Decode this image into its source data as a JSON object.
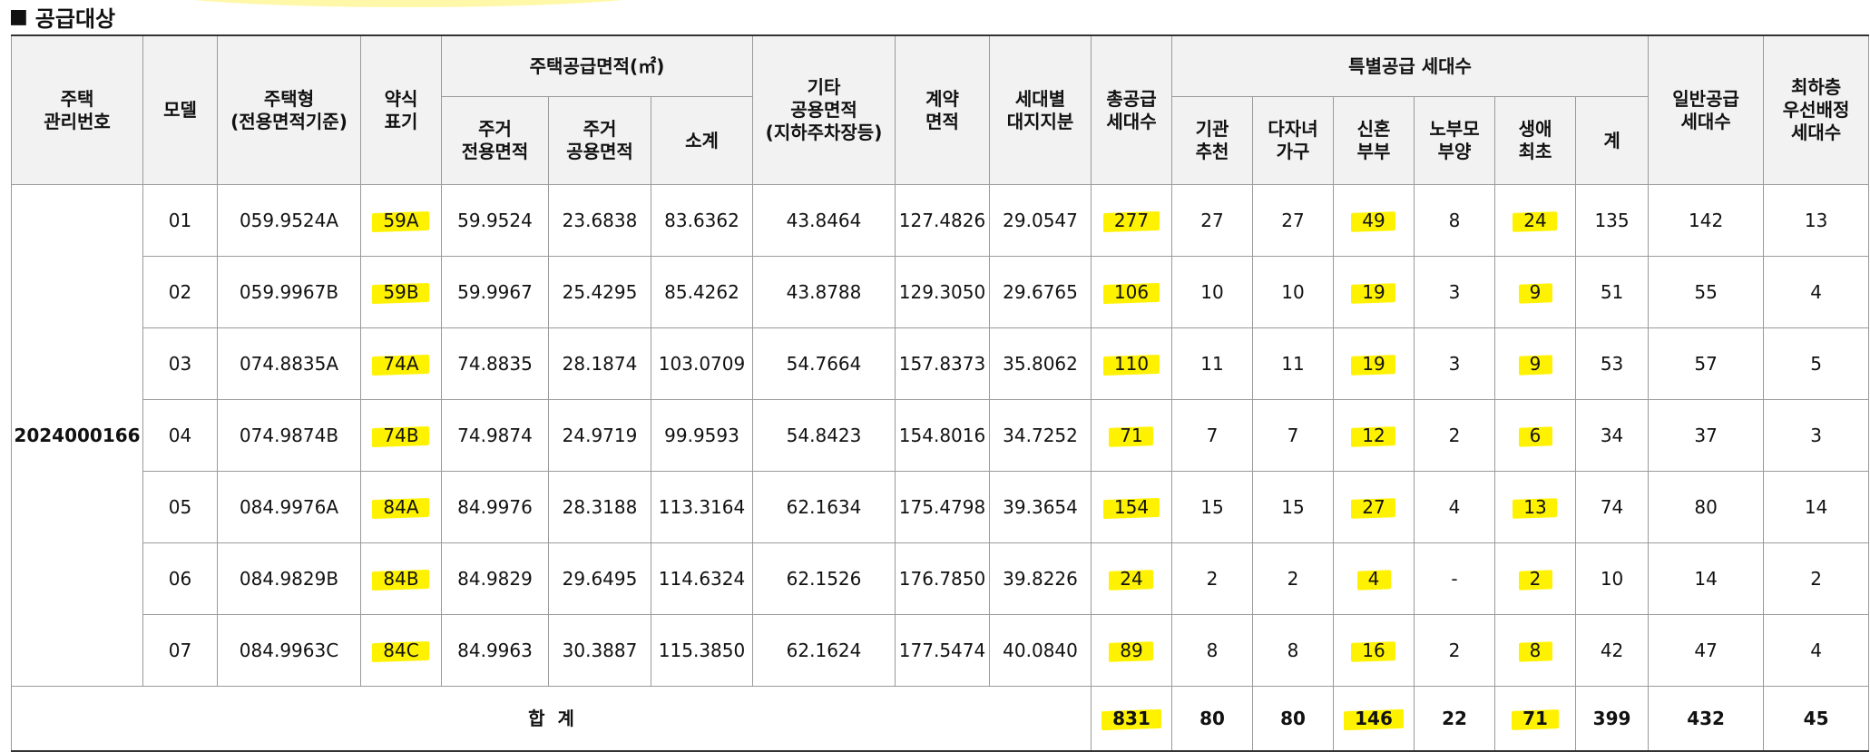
{
  "section_title": "공급대상",
  "headers": {
    "mgmt_no": [
      "주택",
      "관리번호"
    ],
    "model": "모델",
    "housing_type": [
      "주택형",
      "(전용면적기준)"
    ],
    "abbr": [
      "약식",
      "표기"
    ],
    "supply_area": "주택공급면적(㎡)",
    "exclusive_area": [
      "주거",
      "전용면적"
    ],
    "common_area": [
      "주거",
      "공용면적"
    ],
    "subtotal": "소계",
    "other_area": [
      "기타",
      "공용면적",
      "(지하주차장등)"
    ],
    "contract_area": [
      "계약",
      "면적"
    ],
    "land_share": [
      "세대별",
      "대지지분"
    ],
    "total_units": [
      "총공급",
      "세대수"
    ],
    "special_supply": "특별공급 세대수",
    "agency": [
      "기관",
      "추천"
    ],
    "multichild": [
      "다자녀",
      "가구"
    ],
    "newlywed": [
      "신혼",
      "부부"
    ],
    "elderly": [
      "노부모",
      "부양"
    ],
    "firsttime": [
      "생애",
      "최초"
    ],
    "sum": "계",
    "general_units": [
      "일반공급",
      "세대수"
    ],
    "lowest_floor": [
      "최하층",
      "우선배정",
      "세대수"
    ]
  },
  "mgmt_number": "2024000166",
  "rows": [
    {
      "model": "01",
      "type": "059.9524A",
      "abbr": "59A",
      "excl": "59.9524",
      "common": "23.6838",
      "sub": "83.6362",
      "other": "43.8464",
      "contract": "127.4826",
      "land": "29.0547",
      "total": "277",
      "agency": "27",
      "multi": "27",
      "newly": "49",
      "elder": "8",
      "first": "24",
      "sum": "135",
      "general": "142",
      "lowest": "13"
    },
    {
      "model": "02",
      "type": "059.9967B",
      "abbr": "59B",
      "excl": "59.9967",
      "common": "25.4295",
      "sub": "85.4262",
      "other": "43.8788",
      "contract": "129.3050",
      "land": "29.6765",
      "total": "106",
      "agency": "10",
      "multi": "10",
      "newly": "19",
      "elder": "3",
      "first": "9",
      "sum": "51",
      "general": "55",
      "lowest": "4"
    },
    {
      "model": "03",
      "type": "074.8835A",
      "abbr": "74A",
      "excl": "74.8835",
      "common": "28.1874",
      "sub": "103.0709",
      "other": "54.7664",
      "contract": "157.8373",
      "land": "35.8062",
      "total": "110",
      "agency": "11",
      "multi": "11",
      "newly": "19",
      "elder": "3",
      "first": "9",
      "sum": "53",
      "general": "57",
      "lowest": "5"
    },
    {
      "model": "04",
      "type": "074.9874B",
      "abbr": "74B",
      "excl": "74.9874",
      "common": "24.9719",
      "sub": "99.9593",
      "other": "54.8423",
      "contract": "154.8016",
      "land": "34.7252",
      "total": "71",
      "agency": "7",
      "multi": "7",
      "newly": "12",
      "elder": "2",
      "first": "6",
      "sum": "34",
      "general": "37",
      "lowest": "3"
    },
    {
      "model": "05",
      "type": "084.9976A",
      "abbr": "84A",
      "excl": "84.9976",
      "common": "28.3188",
      "sub": "113.3164",
      "other": "62.1634",
      "contract": "175.4798",
      "land": "39.3654",
      "total": "154",
      "agency": "15",
      "multi": "15",
      "newly": "27",
      "elder": "4",
      "first": "13",
      "sum": "74",
      "general": "80",
      "lowest": "14"
    },
    {
      "model": "06",
      "type": "084.9829B",
      "abbr": "84B",
      "excl": "84.9829",
      "common": "29.6495",
      "sub": "114.6324",
      "other": "62.1526",
      "contract": "176.7850",
      "land": "39.8226",
      "total": "24",
      "agency": "2",
      "multi": "2",
      "newly": "4",
      "elder": "-",
      "first": "2",
      "sum": "10",
      "general": "14",
      "lowest": "2"
    },
    {
      "model": "07",
      "type": "084.9963C",
      "abbr": "84C",
      "excl": "84.9963",
      "common": "30.3887",
      "sub": "115.3850",
      "other": "62.1624",
      "contract": "177.5474",
      "land": "40.0840",
      "total": "89",
      "agency": "8",
      "multi": "8",
      "newly": "16",
      "elder": "2",
      "first": "8",
      "sum": "42",
      "general": "47",
      "lowest": "4"
    }
  ],
  "totals": {
    "label": "합  계",
    "total": "831",
    "agency": "80",
    "multi": "80",
    "newly": "146",
    "elder": "22",
    "first": "71",
    "sum": "399",
    "general": "432",
    "lowest": "45"
  },
  "highlight_color": "#fff200"
}
